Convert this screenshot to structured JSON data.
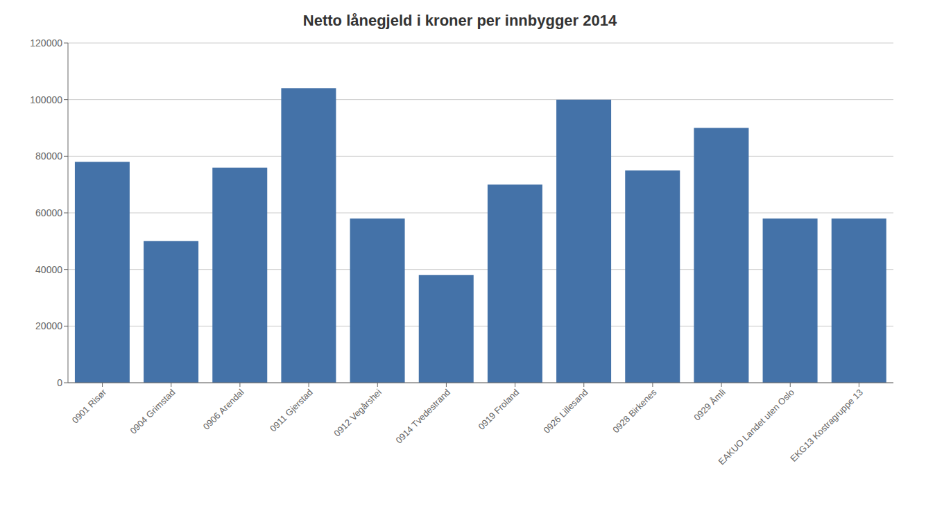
{
  "chart_data": {
    "type": "bar",
    "title": "Netto lånegjeld i kroner per innbygger 2014",
    "categories": [
      "0901 Risør",
      "0904 Grimstad",
      "0906 Arendal",
      "0911 Gjerstad",
      "0912 Vegårshei",
      "0914 Tvedestrand",
      "0919 Froland",
      "0926 Lillesand",
      "0928 Birkenes",
      "0929 Åmli",
      "EAKUO Landet uten Oslo",
      "EKG13 Kostragruppe 13"
    ],
    "values": [
      78000,
      50000,
      76000,
      104000,
      58000,
      38000,
      70000,
      100000,
      75000,
      90000,
      58000,
      58000
    ],
    "color": "#4472a8",
    "ylim": [
      0,
      120000
    ],
    "yticks": [
      0,
      20000,
      40000,
      60000,
      80000,
      100000,
      120000
    ],
    "grid": true
  }
}
